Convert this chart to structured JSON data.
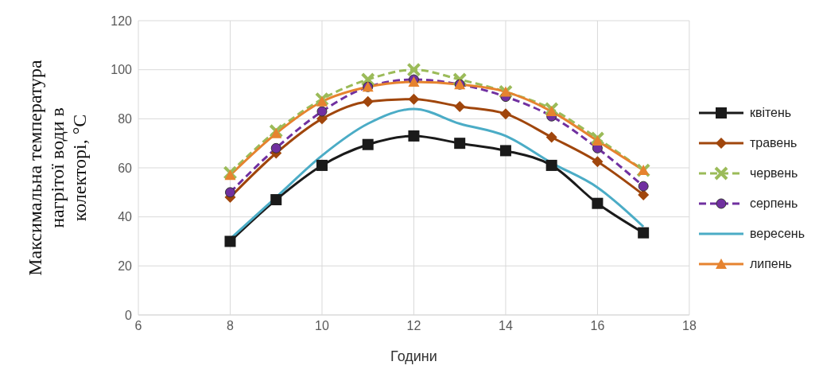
{
  "chart_data": {
    "type": "line",
    "xlabel": "Години",
    "ylabel": "Максимальна температура нагрітої води в колекторі, °C",
    "x": [
      8,
      9,
      10,
      11,
      12,
      13,
      14,
      15,
      16,
      17
    ],
    "xlim": [
      6,
      18
    ],
    "xticks": [
      6,
      8,
      10,
      12,
      14,
      16,
      18
    ],
    "ylim": [
      0,
      120
    ],
    "yticks": [
      0,
      20,
      40,
      60,
      80,
      100,
      120
    ],
    "grid": true,
    "legend": "right",
    "series": [
      {
        "name": "квітень",
        "color": "#1a1a1a",
        "marker": "square",
        "line_style": "solid",
        "values": [
          30,
          47,
          61,
          69.5,
          73,
          70,
          67,
          61,
          45.5,
          33.5
        ]
      },
      {
        "name": "травень",
        "color": "#a0460c",
        "marker": "diamond",
        "line_style": "solid",
        "values": [
          48,
          66,
          80,
          87,
          88,
          85,
          82,
          72.5,
          62.5,
          49
        ]
      },
      {
        "name": "червень",
        "color": "#9bbb59",
        "marker": "cross",
        "line_style": "dashed",
        "values": [
          58,
          75,
          88,
          96,
          100,
          96,
          91,
          84,
          72,
          59
        ]
      },
      {
        "name": "серпень",
        "color": "#7030a0",
        "marker": "circle",
        "line_style": "dashed",
        "values": [
          50,
          68,
          83,
          93,
          96,
          94,
          89,
          81,
          68,
          52.5
        ]
      },
      {
        "name": "вересень",
        "color": "#4bacc6",
        "marker": "none",
        "line_style": "solid",
        "values": [
          31,
          48,
          65,
          78,
          84,
          78,
          73,
          62,
          52,
          36
        ]
      },
      {
        "name": "липень",
        "color": "#e6832f",
        "marker": "triangle",
        "line_style": "solid",
        "values": [
          57,
          74,
          87,
          93,
          95,
          94,
          91,
          83,
          71,
          59
        ]
      }
    ]
  }
}
